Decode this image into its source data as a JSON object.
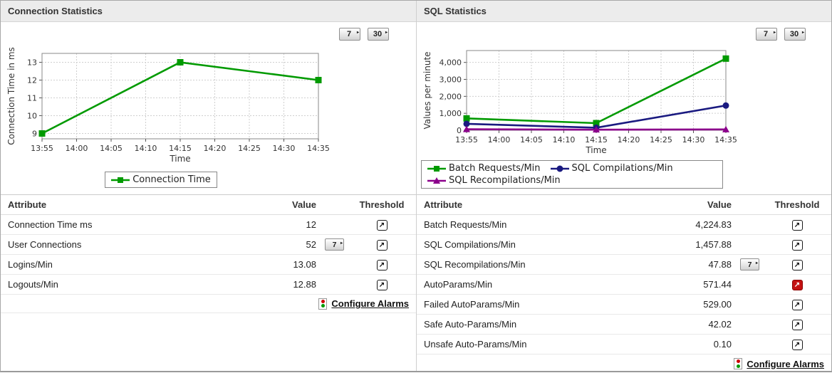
{
  "colors": {
    "header_bg": "#ececec",
    "series_green": "#009a00",
    "series_navy": "#1a1a80",
    "series_purple": "#8b008b",
    "alarm_red": "#cc0000",
    "ok_green": "#009900"
  },
  "icons": {
    "threshold": "↗",
    "flyout_arrow": "◢"
  },
  "panels": {
    "connection": {
      "title": "Connection Statistics",
      "period_buttons": [
        "7",
        "30"
      ],
      "table": {
        "headers": [
          "Attribute",
          "Value",
          "Threshold"
        ],
        "rows": [
          {
            "attribute": "Connection Time ms",
            "value": "12",
            "history_button": null,
            "threshold_alarm": false
          },
          {
            "attribute": "User Connections",
            "value": "52",
            "history_button": "7",
            "threshold_alarm": false
          },
          {
            "attribute": "Logins/Min",
            "value": "13.08",
            "history_button": null,
            "threshold_alarm": false
          },
          {
            "attribute": "Logouts/Min",
            "value": "12.88",
            "history_button": null,
            "threshold_alarm": false
          }
        ],
        "configure_label": "Configure Alarms"
      }
    },
    "sql": {
      "title": "SQL Statistics",
      "period_buttons": [
        "7",
        "30"
      ],
      "table": {
        "headers": [
          "Attribute",
          "Value",
          "Threshold"
        ],
        "rows": [
          {
            "attribute": "Batch Requests/Min",
            "value": "4,224.83",
            "history_button": null,
            "threshold_alarm": false
          },
          {
            "attribute": "SQL Compilations/Min",
            "value": "1,457.88",
            "history_button": null,
            "threshold_alarm": false
          },
          {
            "attribute": "SQL Recompilations/Min",
            "value": "47.88",
            "history_button": "7",
            "threshold_alarm": false
          },
          {
            "attribute": "AutoParams/Min",
            "value": "571.44",
            "history_button": null,
            "threshold_alarm": true
          },
          {
            "attribute": "Failed AutoParams/Min",
            "value": "529.00",
            "history_button": null,
            "threshold_alarm": false
          },
          {
            "attribute": "Safe Auto-Params/Min",
            "value": "42.02",
            "history_button": null,
            "threshold_alarm": false
          },
          {
            "attribute": "Unsafe Auto-Params/Min",
            "value": "0.10",
            "history_button": null,
            "threshold_alarm": false
          }
        ],
        "configure_label": "Configure Alarms"
      }
    }
  },
  "chart_data": [
    {
      "type": "line",
      "title": "",
      "categories": [
        "13:55",
        "14:00",
        "14:05",
        "14:10",
        "14:15",
        "14:20",
        "14:25",
        "14:30",
        "14:35"
      ],
      "xlabel": "Time",
      "ylabel": "Connection Time in ms",
      "ylim": [
        8.7,
        13.5
      ],
      "yticks": [
        9,
        10,
        11,
        12,
        13
      ],
      "ytick_labels": [
        "9",
        "10",
        "11",
        "12",
        "13"
      ],
      "grid": true,
      "legend_position": "bottom",
      "series": [
        {
          "name": "Connection Time",
          "color": "#009a00",
          "marker": "square",
          "x": [
            "13:55",
            "14:15",
            "14:35"
          ],
          "values": [
            9,
            13,
            12
          ]
        }
      ]
    },
    {
      "type": "line",
      "title": "",
      "categories": [
        "13:55",
        "14:00",
        "14:05",
        "14:10",
        "14:15",
        "14:20",
        "14:25",
        "14:30",
        "14:35"
      ],
      "xlabel": "Time",
      "ylabel": "Values per minute",
      "ylim": [
        0,
        4700
      ],
      "yticks": [
        0,
        1000,
        2000,
        3000,
        4000
      ],
      "ytick_labels": [
        "0",
        "1,000",
        "2,000",
        "3,000",
        "4,000"
      ],
      "grid": true,
      "legend_position": "bottom",
      "series": [
        {
          "name": "Batch Requests/Min",
          "color": "#009a00",
          "marker": "square",
          "x": [
            "13:55",
            "14:15",
            "14:35"
          ],
          "values": [
            700,
            420,
            4224.83
          ]
        },
        {
          "name": "SQL Compilations/Min",
          "color": "#1a1a80",
          "marker": "circle",
          "x": [
            "13:55",
            "14:15",
            "14:35"
          ],
          "values": [
            380,
            150,
            1457.88
          ]
        },
        {
          "name": "SQL Recompilations/Min",
          "color": "#8b008b",
          "marker": "triangle",
          "x": [
            "13:55",
            "14:15",
            "14:35"
          ],
          "values": [
            60,
            35,
            47.88
          ]
        }
      ]
    }
  ]
}
